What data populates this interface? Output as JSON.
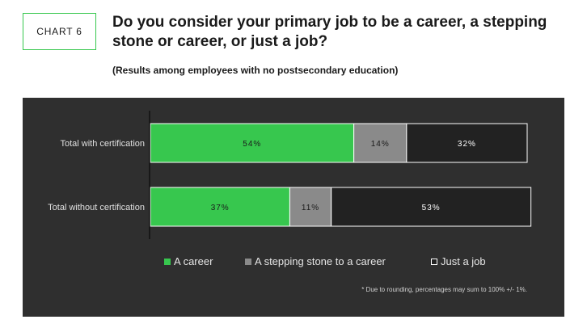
{
  "header": {
    "tag": "CHART 6",
    "title": "Do you consider your primary job to be a career, a stepping stone or career, or just a job?",
    "subtitle": "(Results among employees with no postsecondary education)"
  },
  "chart_data": {
    "type": "bar",
    "orientation": "horizontal",
    "stacked": true,
    "categories": [
      "Total with certification",
      "Total without certification"
    ],
    "series": [
      {
        "name": "A career",
        "values": [
          54,
          37
        ],
        "labels": [
          "54%",
          "37%"
        ],
        "color": "#37c74e"
      },
      {
        "name": "A stepping stone to a career",
        "values": [
          14,
          11
        ],
        "labels": [
          "14%",
          "11%"
        ],
        "color": "#8a8a8a"
      },
      {
        "name": "Just a job",
        "values": [
          32,
          53
        ],
        "labels": [
          "32%",
          "53%"
        ],
        "color": "#222222"
      }
    ],
    "xlim": [
      0,
      100
    ],
    "legend": "bottom",
    "background": "#2f2f2f",
    "footnote": "* Due to rounding, percentages may sum to 100% +/- 1%."
  }
}
